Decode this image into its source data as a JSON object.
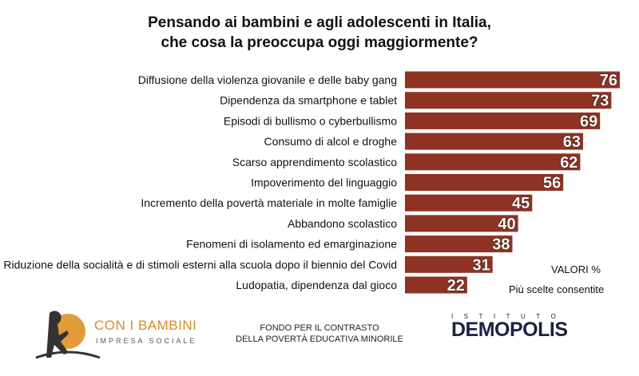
{
  "chart_data": {
    "type": "bar",
    "orientation": "horizontal",
    "title": "Pensando ai bambini e agli adolescenti in Italia, che cosa la preoccupa oggi maggiormente?",
    "title_lines": [
      "Pensando ai bambini e agli adolescenti in Italia,",
      "che cosa la preoccupa oggi maggiormente?"
    ],
    "categories": [
      "Diffusione della violenza giovanile e delle baby gang",
      "Dipendenza da smartphone e tablet",
      "Episodi di bullismo o cyberbullismo",
      "Consumo di alcol e droghe",
      "Scarso apprendimento scolastico",
      "Impoverimento del linguaggio",
      "Incremento della povertà materiale in molte famiglie",
      "Abbandono scolastico",
      "Fenomeni di isolamento ed emarginazione",
      "Riduzione della socialità e di stimoli esterni alla scuola dopo il biennio del Covid",
      "Ludopatia, dipendenza dal gioco"
    ],
    "values": [
      76,
      73,
      69,
      63,
      62,
      56,
      45,
      40,
      38,
      31,
      22
    ],
    "unit_note": "VALORI %",
    "note": "Più scelte consentite",
    "bar_color": "#8e3324",
    "xlim": [
      0,
      76
    ]
  },
  "footer": {
    "logo_left": {
      "name": "CON I BAMBINI",
      "sub": "IMPRESA SOCIALE"
    },
    "fondo": [
      "FONDO PER IL CONTRASTO",
      "DELLA POVERTÀ EDUCATIVA MINORILE"
    ],
    "logo_right": {
      "top": "ISTITUTO",
      "name": "DEMOPOLIS"
    }
  }
}
